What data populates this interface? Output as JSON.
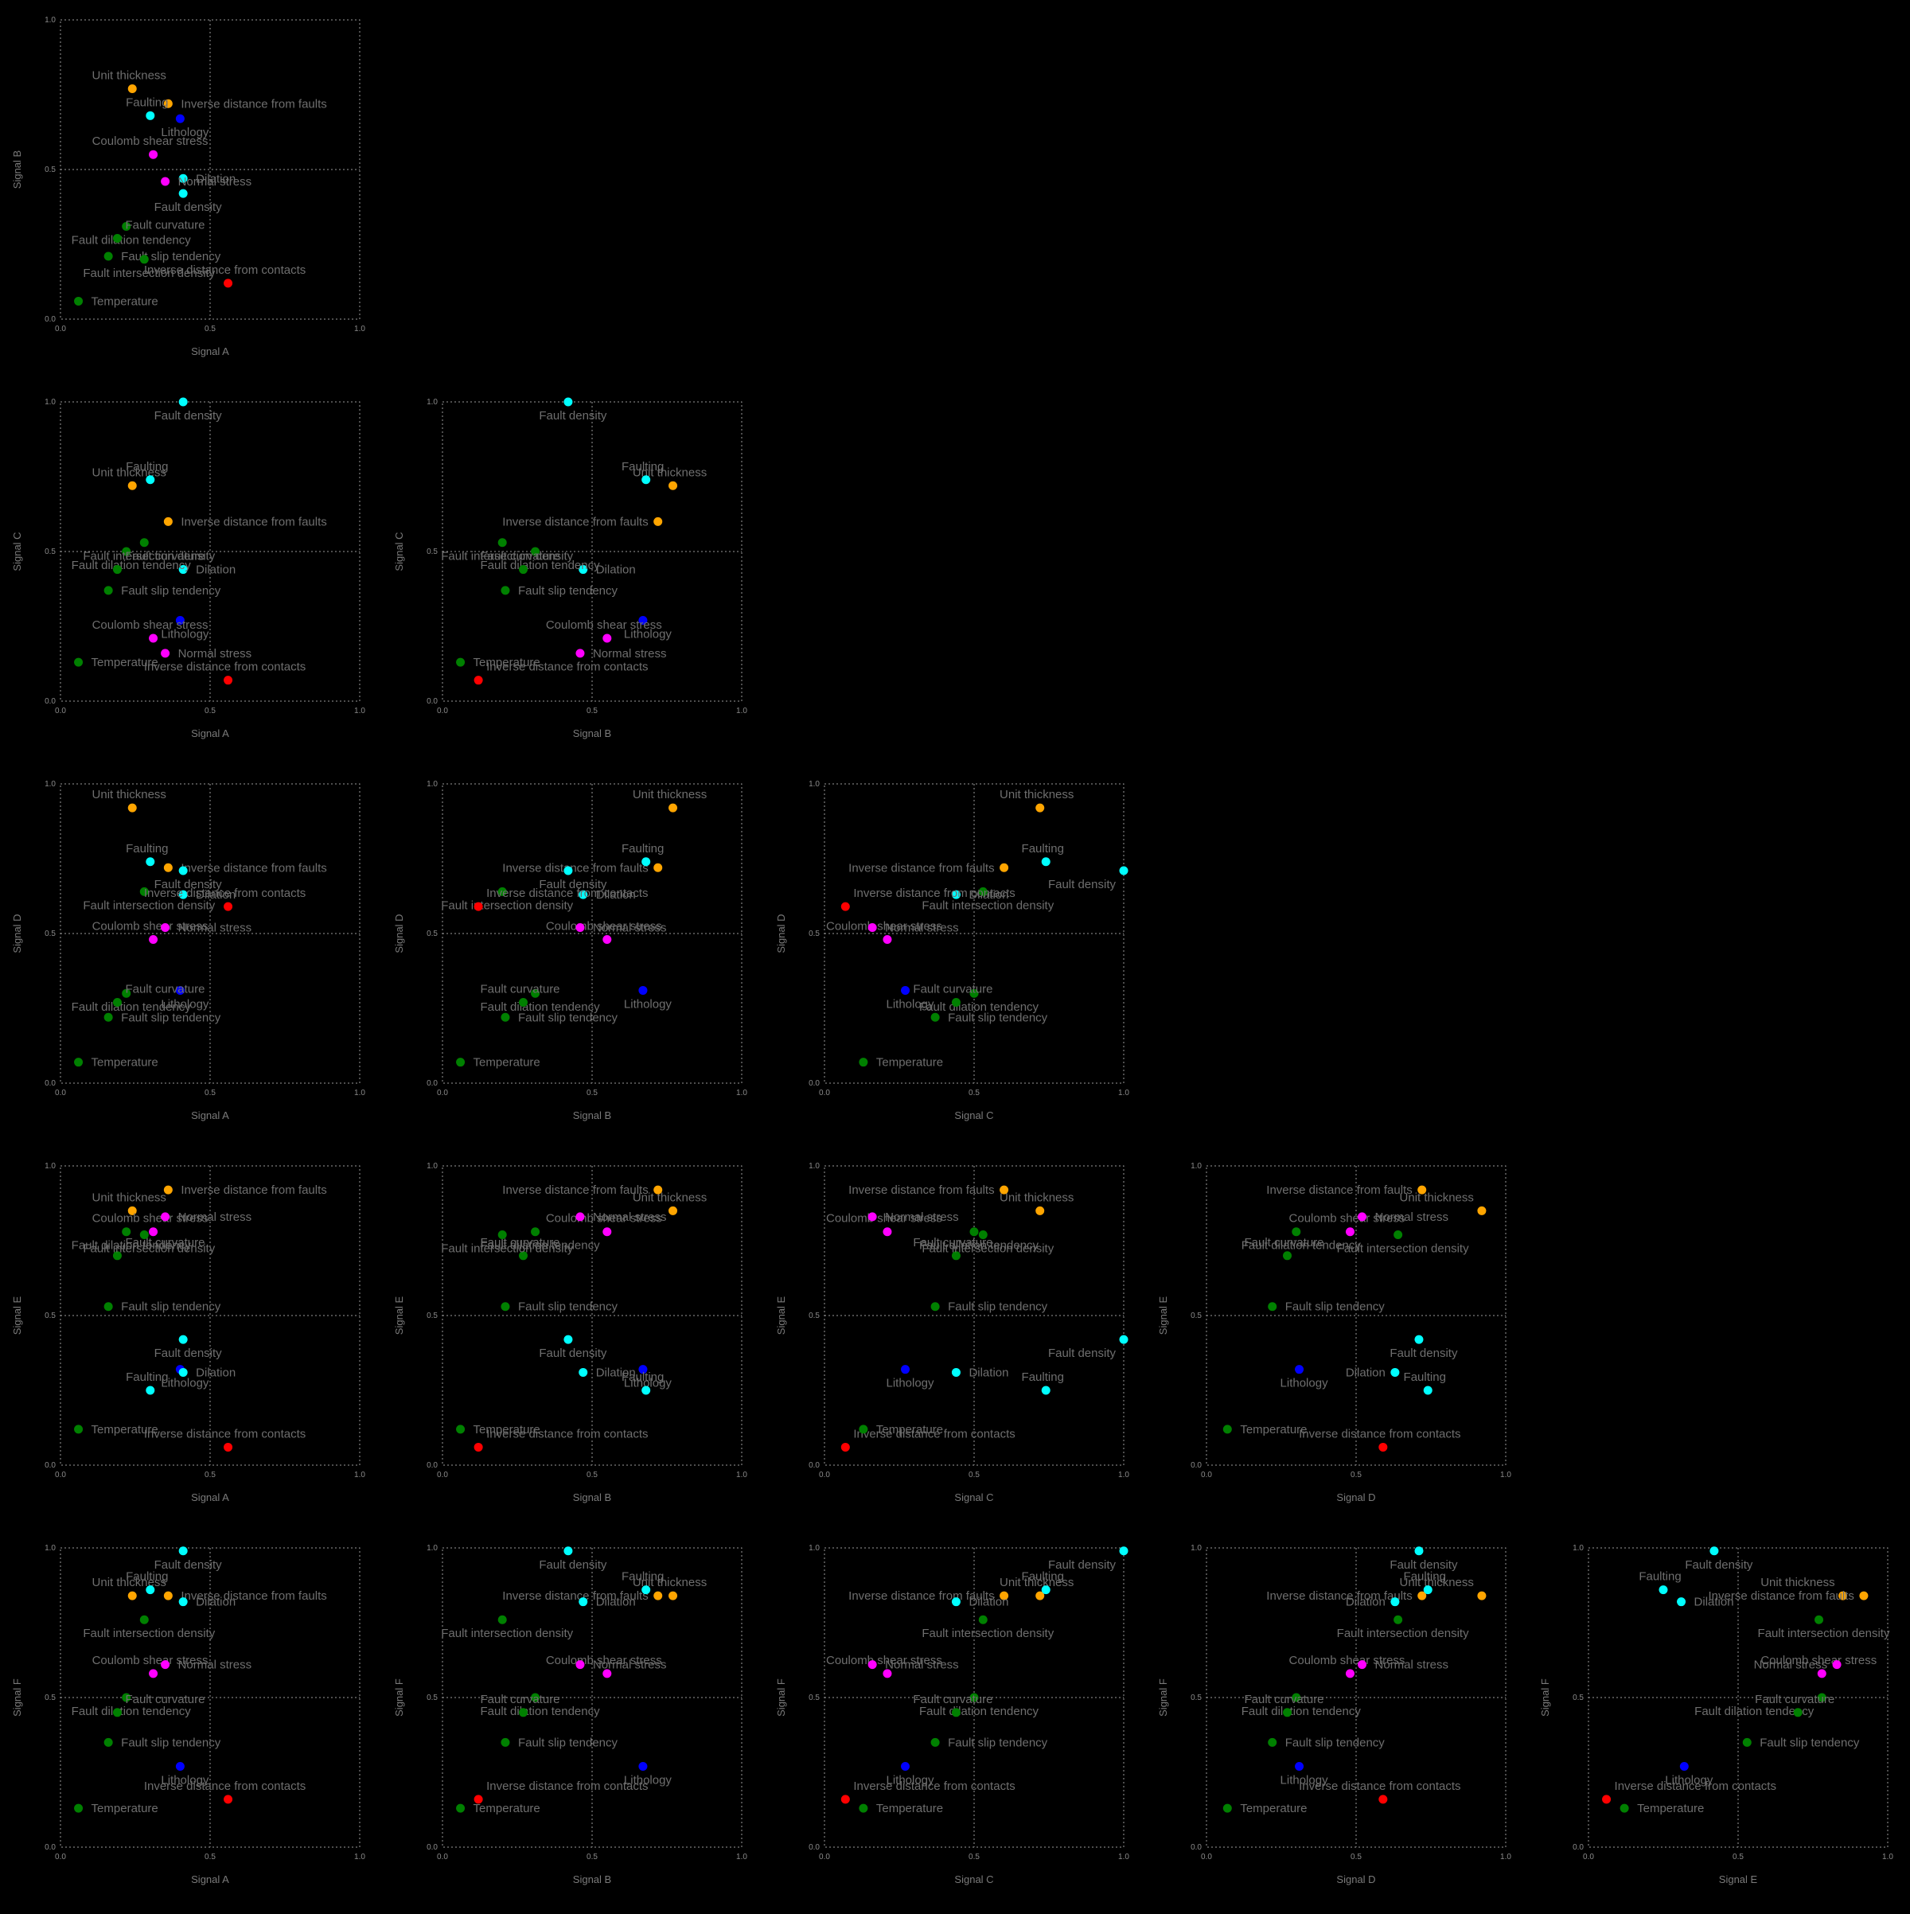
{
  "colors": {
    "background": "#000000",
    "Unit thickness": "#ffa500",
    "Inverse distance from faults": "#ffa500",
    "Lithology": "#0000ff",
    "Faulting": "#00ffff",
    "Dilation": "#00ffff",
    "Fault density": "#00ffff",
    "Coulomb shear stress": "#ff00ff",
    "Normal stress": "#ff00ff",
    "Fault dilation tendency": "#008000",
    "Fault curvature": "#008000",
    "Fault slip tendency": "#008000",
    "Fault intersection density": "#008000",
    "Inverse distance from contacts": "#ff0000",
    "Temperature": "#008000"
  },
  "chart_data": {
    "type": "scatter",
    "layout": "pairwise scatter matrix, upper triangle",
    "grid": true,
    "axis_range": [
      0,
      1
    ],
    "ticks": [
      "0.0",
      "0.5",
      "1.0"
    ],
    "signal_names": [
      "Signal A",
      "Signal B",
      "Signal C",
      "Signal D",
      "Signal E",
      "Signal F"
    ],
    "points": [
      {
        "label": "Unit thickness",
        "values": [
          0.24,
          0.77,
          0.72,
          0.92,
          0.85,
          0.84
        ]
      },
      {
        "label": "Inverse distance from faults",
        "values": [
          0.36,
          0.72,
          0.6,
          0.72,
          0.92,
          0.84
        ]
      },
      {
        "label": "Lithology",
        "values": [
          0.4,
          0.67,
          0.27,
          0.31,
          0.32,
          0.27
        ]
      },
      {
        "label": "Faulting",
        "values": [
          0.3,
          0.68,
          0.74,
          0.74,
          0.25,
          0.86
        ]
      },
      {
        "label": "Dilation",
        "values": [
          0.41,
          0.47,
          0.44,
          0.63,
          0.31,
          0.82
        ]
      },
      {
        "label": "Fault density",
        "values": [
          0.41,
          0.42,
          1.0,
          0.71,
          0.42,
          0.99
        ]
      },
      {
        "label": "Coulomb shear stress",
        "values": [
          0.31,
          0.55,
          0.21,
          0.48,
          0.78,
          0.58
        ]
      },
      {
        "label": "Normal stress",
        "values": [
          0.35,
          0.46,
          0.16,
          0.52,
          0.83,
          0.61
        ]
      },
      {
        "label": "Fault dilation tendency",
        "values": [
          0.22,
          0.31,
          0.5,
          0.3,
          0.78,
          0.5
        ]
      },
      {
        "label": "Fault curvature",
        "values": [
          0.19,
          0.27,
          0.44,
          0.27,
          0.7,
          0.45
        ]
      },
      {
        "label": "Fault slip tendency",
        "values": [
          0.16,
          0.21,
          0.37,
          0.22,
          0.53,
          0.35
        ]
      },
      {
        "label": "Fault intersection density",
        "values": [
          0.28,
          0.2,
          0.53,
          0.64,
          0.77,
          0.76
        ]
      },
      {
        "label": "Inverse distance from contacts",
        "values": [
          0.56,
          0.12,
          0.07,
          0.59,
          0.06,
          0.16
        ]
      },
      {
        "label": "Temperature",
        "values": [
          0.06,
          0.06,
          0.13,
          0.07,
          0.12,
          0.13
        ]
      }
    ]
  }
}
